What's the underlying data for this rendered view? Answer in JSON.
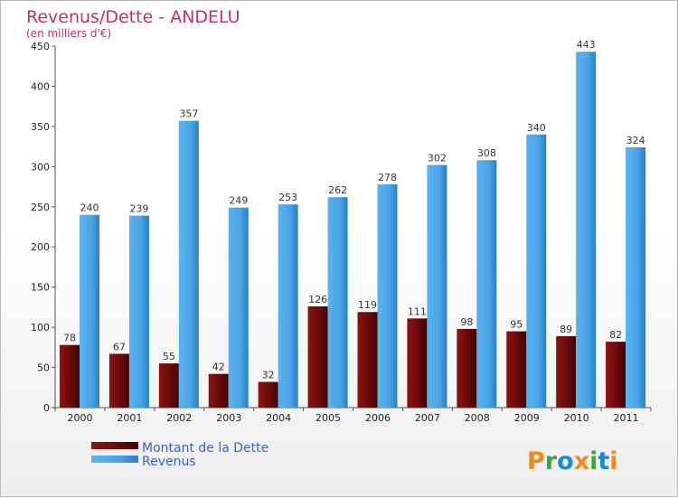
{
  "chart_data": {
    "type": "bar",
    "title": "Revenus/Dette - ANDELU",
    "subtitle": "(en milliers d'€)",
    "categories": [
      "2000",
      "2001",
      "2002",
      "2003",
      "2004",
      "2005",
      "2006",
      "2007",
      "2008",
      "2009",
      "2010",
      "2011"
    ],
    "series": [
      {
        "name": "Montant de la Dette",
        "color": "#6b0a0a",
        "values": [
          78,
          67,
          55,
          42,
          32,
          126,
          119,
          111,
          98,
          95,
          89,
          82
        ]
      },
      {
        "name": "Revenus",
        "color": "#4aa3e6",
        "values": [
          240,
          239,
          357,
          249,
          253,
          262,
          278,
          302,
          308,
          340,
          443,
          324
        ]
      }
    ],
    "ylim": [
      0,
      450
    ],
    "yticks": [
      0,
      50,
      100,
      150,
      200,
      250,
      300,
      350,
      400,
      450
    ],
    "grid": false,
    "legend_position": "bottom-left"
  },
  "logo": {
    "letters": [
      "P",
      "r",
      "o",
      "x",
      "i",
      "t",
      "i"
    ],
    "colors": [
      "#f08a1c",
      "#39a935",
      "#1b8bd6",
      "#f08a1c",
      "#39a935",
      "#1b8bd6",
      "#f08a1c"
    ]
  }
}
